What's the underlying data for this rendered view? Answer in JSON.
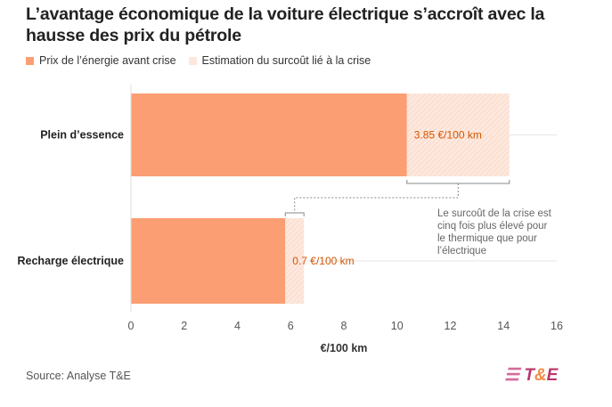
{
  "title": "L’avantage économique de la voiture électrique s’accroît avec la hausse des prix du pétrole",
  "source": "Source: Analyse T&E",
  "logo": {
    "t": "T",
    "amp": "&",
    "e": "E"
  },
  "colors": {
    "base": "#fb9e73",
    "extra": "#fde8de",
    "label": "#d35400"
  },
  "annotation": [
    "Le surcoût de la crise est",
    "cinq fois plus élevé pour",
    "le thermique que pour",
    "l’électrique"
  ],
  "chart_data": {
    "type": "bar",
    "orientation": "horizontal",
    "stacked": true,
    "categories": [
      "Plein d’essence",
      "Recharge électrique"
    ],
    "series": [
      {
        "name": "Prix de l’énergie avant crise",
        "values": [
          10.37,
          5.8
        ]
      },
      {
        "name": "Estimation du surcoût lié à la crise",
        "values": [
          3.85,
          0.7
        ]
      }
    ],
    "data_labels": [
      "3.85 €/100 km",
      "0.7 €/100 km"
    ],
    "xlabel": "€/100 km",
    "xlim": [
      0,
      16
    ],
    "xticks": [
      0,
      2,
      4,
      6,
      8,
      10,
      12,
      14,
      16
    ],
    "legend": "top-left"
  }
}
